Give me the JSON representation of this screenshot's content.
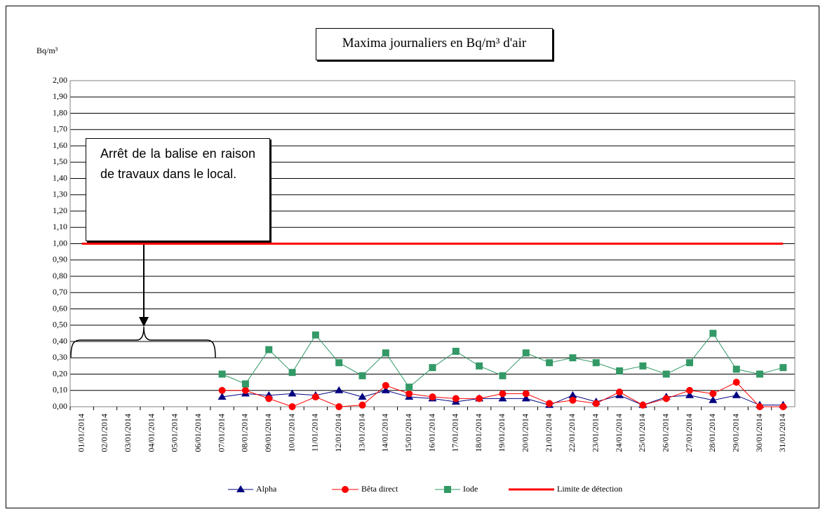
{
  "chart_data": {
    "type": "line",
    "title": "Maxima journaliers en Bq/m³ d'air",
    "y_label": "Bq/m³",
    "annotation": "Arrêt de la balise en raison de travaux dans le local.",
    "categories": [
      "01/01/2014",
      "02/01/2014",
      "03/01/2014",
      "04/01/2014",
      "05/01/2014",
      "06/01/2014",
      "07/01/2014",
      "08/01/2014",
      "09/01/2014",
      "10/01/2014",
      "11/01/2014",
      "12/01/2014",
      "13/01/2014",
      "14/01/2014",
      "15/01/2014",
      "16/01/2014",
      "17/01/2014",
      "18/01/2014",
      "19/01/2014",
      "20/01/2014",
      "21/01/2014",
      "22/01/2014",
      "23/01/2014",
      "24/01/2014",
      "25/01/2014",
      "26/01/2014",
      "27/01/2014",
      "28/01/2014",
      "29/01/2014",
      "30/01/2014",
      "31/01/2014"
    ],
    "series": [
      {
        "name": "Alpha",
        "color": "#000080",
        "marker": "triangle",
        "line_width": 1,
        "values": [
          null,
          null,
          null,
          null,
          null,
          null,
          0.06,
          0.08,
          0.07,
          0.08,
          0.07,
          0.1,
          0.06,
          0.1,
          0.06,
          0.05,
          0.03,
          0.05,
          0.05,
          0.05,
          0.01,
          0.07,
          0.03,
          0.07,
          0.01,
          0.06,
          0.07,
          0.04,
          0.07,
          0.01,
          0.01
        ]
      },
      {
        "name": "Bêta direct",
        "color": "#ff0000",
        "marker": "circle",
        "line_width": 1,
        "values": [
          null,
          null,
          null,
          null,
          null,
          null,
          0.1,
          0.1,
          0.05,
          0.0,
          0.06,
          0.0,
          0.01,
          0.13,
          0.08,
          0.06,
          0.05,
          0.05,
          0.08,
          0.08,
          0.02,
          0.04,
          0.02,
          0.09,
          0.01,
          0.05,
          0.1,
          0.08,
          0.15,
          0.0,
          0.0
        ]
      },
      {
        "name": "Iode",
        "color": "#339966",
        "marker": "square",
        "line_width": 1,
        "values": [
          null,
          null,
          null,
          null,
          null,
          null,
          0.2,
          0.14,
          0.35,
          0.21,
          0.44,
          0.27,
          0.19,
          0.33,
          0.12,
          0.24,
          0.34,
          0.25,
          0.19,
          0.33,
          0.27,
          0.3,
          0.27,
          0.22,
          0.25,
          0.2,
          0.27,
          0.45,
          0.23,
          0.2,
          0.24
        ]
      },
      {
        "name": "Limite de détection",
        "color": "#ff0000",
        "marker": "none",
        "line_width": 3,
        "values": [
          1,
          1,
          1,
          1,
          1,
          1,
          1,
          1,
          1,
          1,
          1,
          1,
          1,
          1,
          1,
          1,
          1,
          1,
          1,
          1,
          1,
          1,
          1,
          1,
          1,
          1,
          1,
          1,
          1,
          1,
          1
        ]
      }
    ],
    "ylim": [
      0,
      2
    ],
    "yticks": [
      {
        "value": 0,
        "label": "0,00"
      },
      {
        "value": 0.1,
        "label": "0,10"
      },
      {
        "value": 0.2,
        "label": "0,20"
      },
      {
        "value": 0.3,
        "label": "0,30"
      },
      {
        "value": 0.4,
        "label": "0,40"
      },
      {
        "value": 0.5,
        "label": "0,50"
      },
      {
        "value": 0.6,
        "label": "0,60"
      },
      {
        "value": 0.7,
        "label": "0,70"
      },
      {
        "value": 0.8,
        "label": "0,80"
      },
      {
        "value": 0.9,
        "label": "0,90"
      },
      {
        "value": 1,
        "label": "1,00"
      },
      {
        "value": 1.1,
        "label": "1,10"
      },
      {
        "value": 1.2,
        "label": "1,20"
      },
      {
        "value": 1.3,
        "label": "1,30"
      },
      {
        "value": 1.4,
        "label": "1,40"
      },
      {
        "value": 1.5,
        "label": "1,50"
      },
      {
        "value": 1.6,
        "label": "1,60"
      },
      {
        "value": 1.7,
        "label": "1,70"
      },
      {
        "value": 1.8,
        "label": "1,80"
      },
      {
        "value": 1.9,
        "label": "1,90"
      },
      {
        "value": 2,
        "label": "2,00"
      }
    ],
    "grid": true
  }
}
